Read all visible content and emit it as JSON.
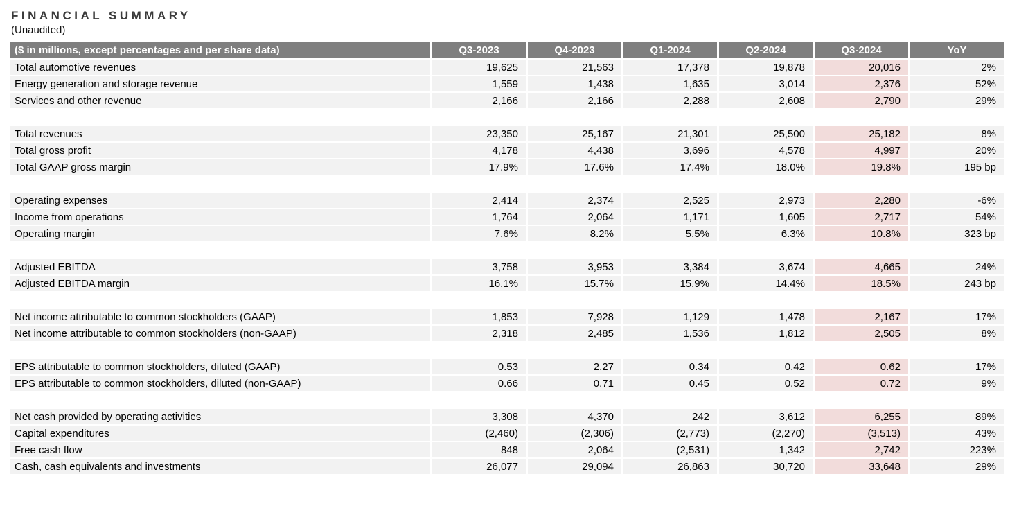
{
  "page": {
    "title": "FINANCIAL SUMMARY",
    "subtitle": "(Unaudited)"
  },
  "colors": {
    "header_bg": "#7f7f7f",
    "header_text": "#ffffff",
    "row_bg": "#f2f2f2",
    "highlight_bg": "#f2dcdb",
    "text": "#000000",
    "title_color": "#3a3a3a",
    "page_bg": "#ffffff"
  },
  "table": {
    "label_header": "($ in millions, except percentages and per share data)",
    "columns": [
      "Q3-2023",
      "Q4-2023",
      "Q1-2024",
      "Q2-2024",
      "Q3-2024",
      "YoY"
    ],
    "highlight_column": "Q3-2024",
    "highlight_column_index": 4,
    "sections": [
      {
        "rows": [
          {
            "label": "Total automotive revenues",
            "values": [
              "19,625",
              "21,563",
              "17,378",
              "19,878",
              "20,016",
              "2%"
            ]
          },
          {
            "label": "Energy generation and storage revenue",
            "values": [
              "1,559",
              "1,438",
              "1,635",
              "3,014",
              "2,376",
              "52%"
            ]
          },
          {
            "label": "Services and other revenue",
            "values": [
              "2,166",
              "2,166",
              "2,288",
              "2,608",
              "2,790",
              "29%"
            ]
          }
        ]
      },
      {
        "rows": [
          {
            "label": "Total revenues",
            "values": [
              "23,350",
              "25,167",
              "21,301",
              "25,500",
              "25,182",
              "8%"
            ]
          },
          {
            "label": "Total gross profit",
            "values": [
              "4,178",
              "4,438",
              "3,696",
              "4,578",
              "4,997",
              "20%"
            ]
          },
          {
            "label": "Total GAAP gross margin",
            "values": [
              "17.9%",
              "17.6%",
              "17.4%",
              "18.0%",
              "19.8%",
              "195 bp"
            ]
          }
        ]
      },
      {
        "rows": [
          {
            "label": "Operating expenses",
            "values": [
              "2,414",
              "2,374",
              "2,525",
              "2,973",
              "2,280",
              "-6%"
            ]
          },
          {
            "label": "Income from operations",
            "values": [
              "1,764",
              "2,064",
              "1,171",
              "1,605",
              "2,717",
              "54%"
            ]
          },
          {
            "label": "Operating margin",
            "values": [
              "7.6%",
              "8.2%",
              "5.5%",
              "6.3%",
              "10.8%",
              "323 bp"
            ]
          }
        ]
      },
      {
        "rows": [
          {
            "label": "Adjusted EBITDA",
            "values": [
              "3,758",
              "3,953",
              "3,384",
              "3,674",
              "4,665",
              "24%"
            ]
          },
          {
            "label": "Adjusted EBITDA margin",
            "values": [
              "16.1%",
              "15.7%",
              "15.9%",
              "14.4%",
              "18.5%",
              "243 bp"
            ]
          }
        ]
      },
      {
        "rows": [
          {
            "label": "Net income attributable to common stockholders (GAAP)",
            "values": [
              "1,853",
              "7,928",
              "1,129",
              "1,478",
              "2,167",
              "17%"
            ]
          },
          {
            "label": "Net income attributable to common stockholders (non-GAAP)",
            "values": [
              "2,318",
              "2,485",
              "1,536",
              "1,812",
              "2,505",
              "8%"
            ]
          }
        ]
      },
      {
        "rows": [
          {
            "label": "EPS attributable to common stockholders, diluted (GAAP)",
            "values": [
              "0.53",
              "2.27",
              "0.34",
              "0.42",
              "0.62",
              "17%"
            ]
          },
          {
            "label": "EPS attributable to common stockholders, diluted (non-GAAP)",
            "values": [
              "0.66",
              "0.71",
              "0.45",
              "0.52",
              "0.72",
              "9%"
            ]
          }
        ]
      },
      {
        "rows": [
          {
            "label": "Net cash provided by operating activities",
            "values": [
              "3,308",
              "4,370",
              "242",
              "3,612",
              "6,255",
              "89%"
            ]
          },
          {
            "label": "Capital expenditures",
            "values": [
              "(2,460)",
              "(2,306)",
              "(2,773)",
              "(2,270)",
              "(3,513)",
              "43%"
            ]
          },
          {
            "label": "Free cash flow",
            "values": [
              "848",
              "2,064",
              "(2,531)",
              "1,342",
              "2,742",
              "223%"
            ]
          },
          {
            "label": "Cash, cash equivalents and investments",
            "values": [
              "26,077",
              "29,094",
              "26,863",
              "30,720",
              "33,648",
              "29%"
            ]
          }
        ]
      }
    ]
  }
}
